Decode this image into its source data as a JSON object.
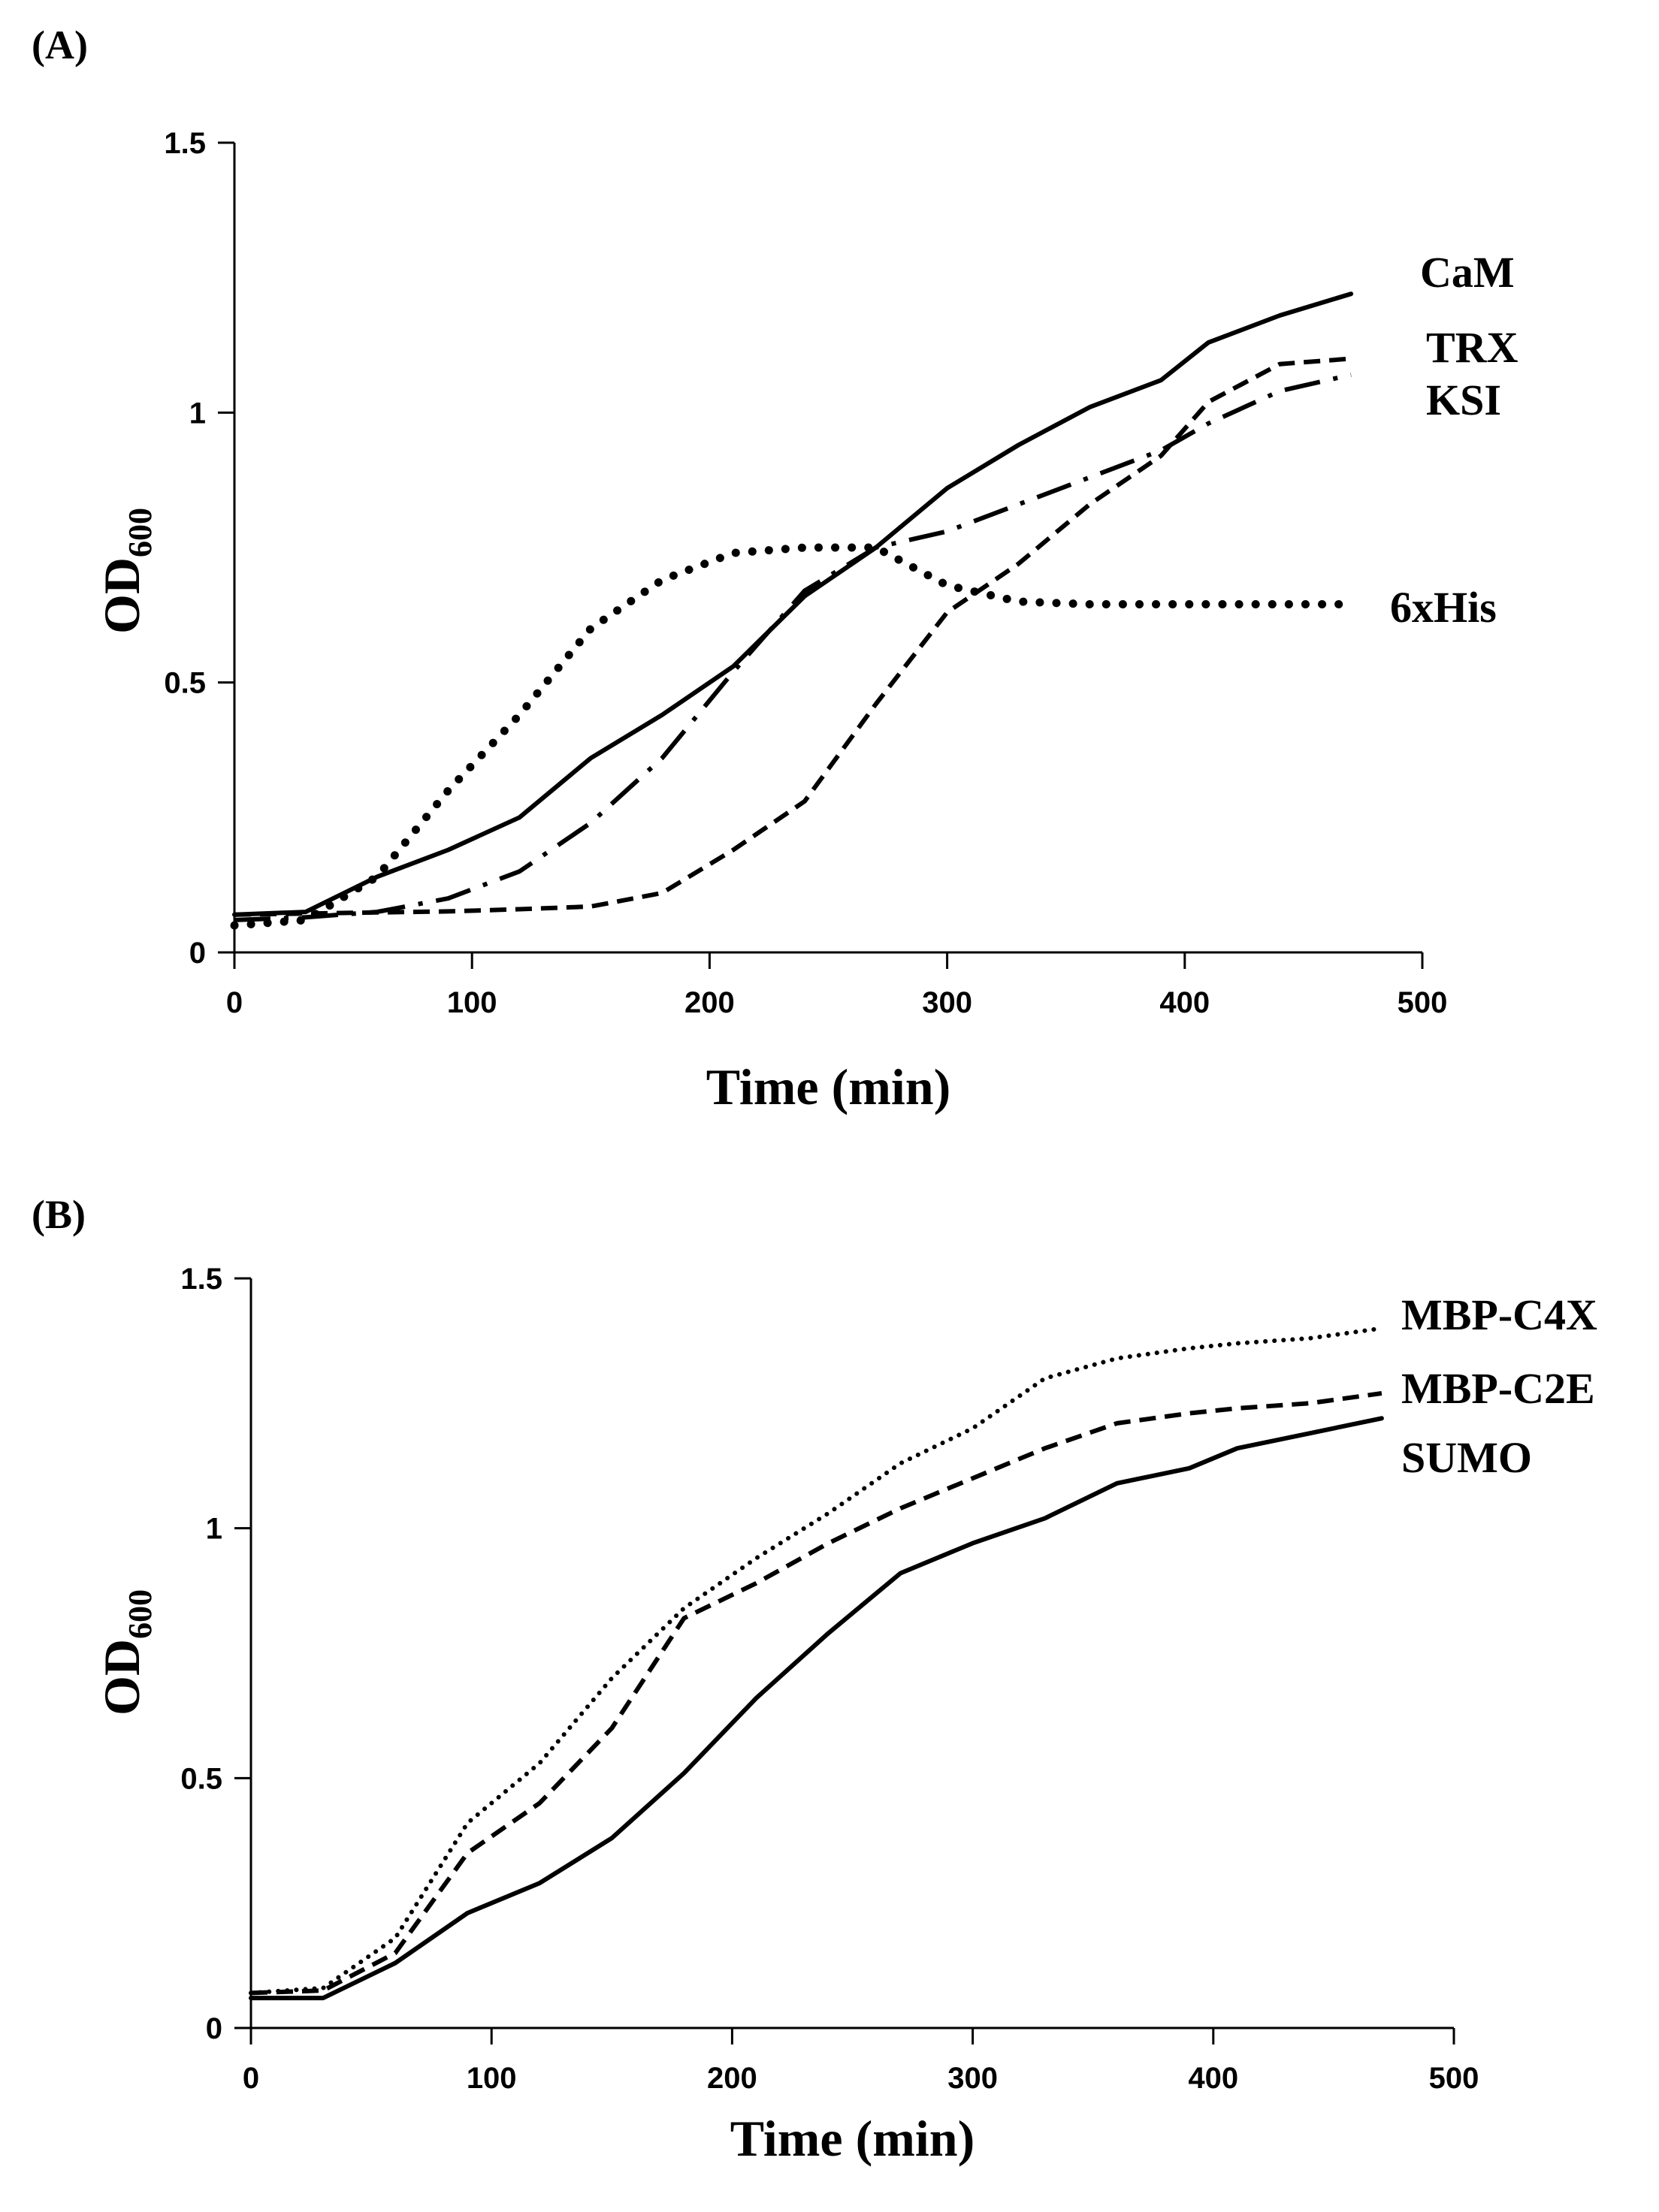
{
  "chart_data": [
    {
      "panel_label": "(A)",
      "type": "line",
      "xlabel": "Time (min)",
      "ylabel": "OD",
      "ylabel_sub": "600",
      "xlim": [
        0,
        500
      ],
      "ylim": [
        0,
        1.5
      ],
      "xticks": [
        0,
        100,
        200,
        300,
        400,
        500
      ],
      "yticks": [
        0,
        0.5,
        1,
        1.5
      ],
      "xtick_labels": [
        "0",
        "100",
        "200",
        "300",
        "400",
        "500"
      ],
      "ytick_labels": [
        "0",
        "0.5",
        "1",
        "1.5"
      ],
      "grid": false,
      "series": [
        {
          "name": "CaM",
          "style": "solid",
          "x": [
            0,
            30,
            60,
            90,
            120,
            150,
            180,
            210,
            240,
            270,
            300,
            330,
            360,
            390,
            410,
            440,
            470
          ],
          "y": [
            0.07,
            0.075,
            0.14,
            0.19,
            0.25,
            0.36,
            0.44,
            0.53,
            0.66,
            0.75,
            0.86,
            0.94,
            1.01,
            1.06,
            1.13,
            1.18,
            1.22
          ]
        },
        {
          "name": "TRX",
          "style": "dashed",
          "x": [
            0,
            30,
            60,
            90,
            120,
            150,
            180,
            210,
            240,
            270,
            300,
            330,
            360,
            390,
            410,
            440,
            470
          ],
          "y": [
            0.07,
            0.072,
            0.074,
            0.076,
            0.08,
            0.085,
            0.11,
            0.19,
            0.28,
            0.46,
            0.63,
            0.72,
            0.83,
            0.92,
            1.02,
            1.09,
            1.1
          ]
        },
        {
          "name": "KSI",
          "style": "dash-dot",
          "x": [
            0,
            30,
            60,
            90,
            120,
            150,
            180,
            210,
            240,
            270,
            300,
            330,
            360,
            390,
            410,
            440,
            470
          ],
          "y": [
            0.06,
            0.065,
            0.075,
            0.1,
            0.15,
            0.24,
            0.36,
            0.52,
            0.67,
            0.75,
            0.78,
            0.83,
            0.88,
            0.93,
            0.98,
            1.04,
            1.07
          ]
        },
        {
          "name": "6xHis",
          "style": "dotted",
          "x": [
            0,
            30,
            60,
            90,
            120,
            150,
            180,
            210,
            240,
            270,
            300,
            330,
            360,
            390,
            410,
            440,
            470
          ],
          "y": [
            0.05,
            0.06,
            0.14,
            0.3,
            0.44,
            0.6,
            0.69,
            0.74,
            0.75,
            0.75,
            0.68,
            0.65,
            0.645,
            0.645,
            0.645,
            0.645,
            0.645
          ]
        }
      ]
    },
    {
      "panel_label": "(B)",
      "type": "line",
      "xlabel": "Time (min)",
      "ylabel": "OD",
      "ylabel_sub": "600",
      "xlim": [
        0,
        500
      ],
      "ylim": [
        0,
        1.5
      ],
      "xticks": [
        0,
        100,
        200,
        300,
        400,
        500
      ],
      "yticks": [
        0,
        0.5,
        1,
        1.5
      ],
      "xtick_labels": [
        "0",
        "100",
        "200",
        "300",
        "400",
        "500"
      ],
      "ytick_labels": [
        "0",
        "0.5",
        "1",
        "1.5"
      ],
      "grid": false,
      "series": [
        {
          "name": "MBP-C4X",
          "style": "dotted-fine",
          "x": [
            0,
            30,
            60,
            90,
            120,
            150,
            180,
            210,
            240,
            270,
            300,
            330,
            360,
            390,
            410,
            440,
            470
          ],
          "y": [
            0.07,
            0.08,
            0.18,
            0.41,
            0.53,
            0.7,
            0.84,
            0.94,
            1.03,
            1.13,
            1.2,
            1.3,
            1.34,
            1.36,
            1.37,
            1.38,
            1.4
          ]
        },
        {
          "name": "MBP-C2E",
          "style": "dashed",
          "x": [
            0,
            30,
            60,
            90,
            120,
            150,
            180,
            210,
            240,
            270,
            300,
            330,
            360,
            390,
            410,
            440,
            470
          ],
          "y": [
            0.07,
            0.075,
            0.15,
            0.35,
            0.45,
            0.6,
            0.82,
            0.89,
            0.97,
            1.04,
            1.1,
            1.16,
            1.21,
            1.23,
            1.24,
            1.25,
            1.27
          ]
        },
        {
          "name": "SUMO",
          "style": "solid",
          "x": [
            0,
            30,
            60,
            90,
            120,
            150,
            180,
            210,
            240,
            270,
            300,
            330,
            360,
            390,
            410,
            440,
            470
          ],
          "y": [
            0.06,
            0.06,
            0.13,
            0.23,
            0.29,
            0.38,
            0.51,
            0.66,
            0.79,
            0.91,
            0.97,
            1.02,
            1.09,
            1.12,
            1.16,
            1.19,
            1.22
          ]
        }
      ]
    }
  ]
}
